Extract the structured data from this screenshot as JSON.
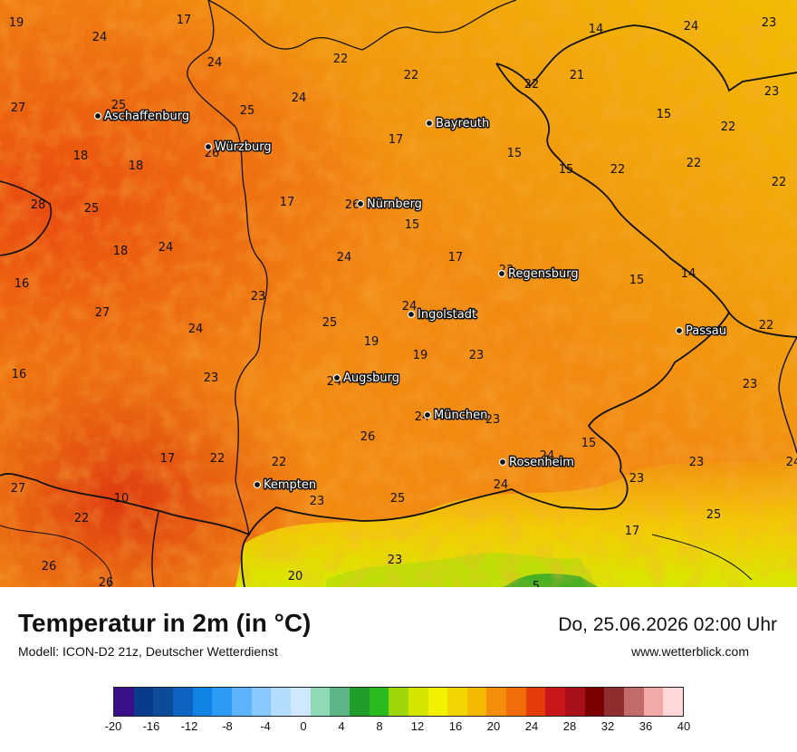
{
  "header": {
    "title": "Temperatur in 2m (in °C)",
    "model": "Modell: ICON-D2 21z, Deutscher Wetterdienst",
    "datetime": "Do, 25.06.2026 02:00 Uhr",
    "website": "www.wetterblick.com"
  },
  "cities": [
    {
      "name": "Aschaffenburg"
    },
    {
      "name": "Würzburg"
    },
    {
      "name": "Bayreuth"
    },
    {
      "name": "Nürnberg"
    },
    {
      "name": "Regensburg"
    },
    {
      "name": "Ingolstadt"
    },
    {
      "name": "Passau"
    },
    {
      "name": "Augsburg"
    },
    {
      "name": "München"
    },
    {
      "name": "Rosenheim"
    },
    {
      "name": "Kempten"
    }
  ],
  "values": [
    "19",
    "17",
    "24",
    "24",
    "22",
    "22",
    "14",
    "24",
    "23",
    "21",
    "22",
    "23",
    "27",
    "25",
    "25",
    "24",
    "22",
    "15",
    "22",
    "26",
    "17",
    "15",
    "22",
    "18",
    "18",
    "15",
    "22",
    "28",
    "25",
    "26",
    "17",
    "15",
    "22",
    "18",
    "24",
    "24",
    "17",
    "23",
    "24",
    "15",
    "14",
    "16",
    "23",
    "24",
    "27",
    "25",
    "22",
    "24",
    "19",
    "19",
    "23",
    "16",
    "23",
    "24",
    "24",
    "23",
    "23",
    "15",
    "26",
    "24",
    "23",
    "22",
    "22",
    "17",
    "24",
    "25",
    "23",
    "24",
    "27",
    "23",
    "10",
    "25",
    "17",
    "22",
    "23",
    "26",
    "26",
    "20",
    "5"
  ],
  "legend": {
    "ticks": [
      "-20",
      "-16",
      "-12",
      "-8",
      "-4",
      "0",
      "4",
      "8",
      "12",
      "16",
      "20",
      "24",
      "28",
      "32",
      "36",
      "40"
    ],
    "colors": [
      "#3a0f8a",
      "#0a3a8c",
      "#0c4b97",
      "#0e63c0",
      "#1182e6",
      "#2d9bf5",
      "#5eb4fb",
      "#88c8ff",
      "#b3dcff",
      "#cfe8ff",
      "#8fd9b5",
      "#5bb587",
      "#1f9e2b",
      "#29bb1f",
      "#9ed60a",
      "#d4e600",
      "#f3f000",
      "#f2d500",
      "#f3b800",
      "#f48d0a",
      "#f06d08",
      "#e63c0c",
      "#c8161a",
      "#a8111a",
      "#7a0000",
      "#8f2e2e",
      "#c26b6b",
      "#f4a9a9",
      "#ffd7d7"
    ],
    "colors_note": ""
  }
}
